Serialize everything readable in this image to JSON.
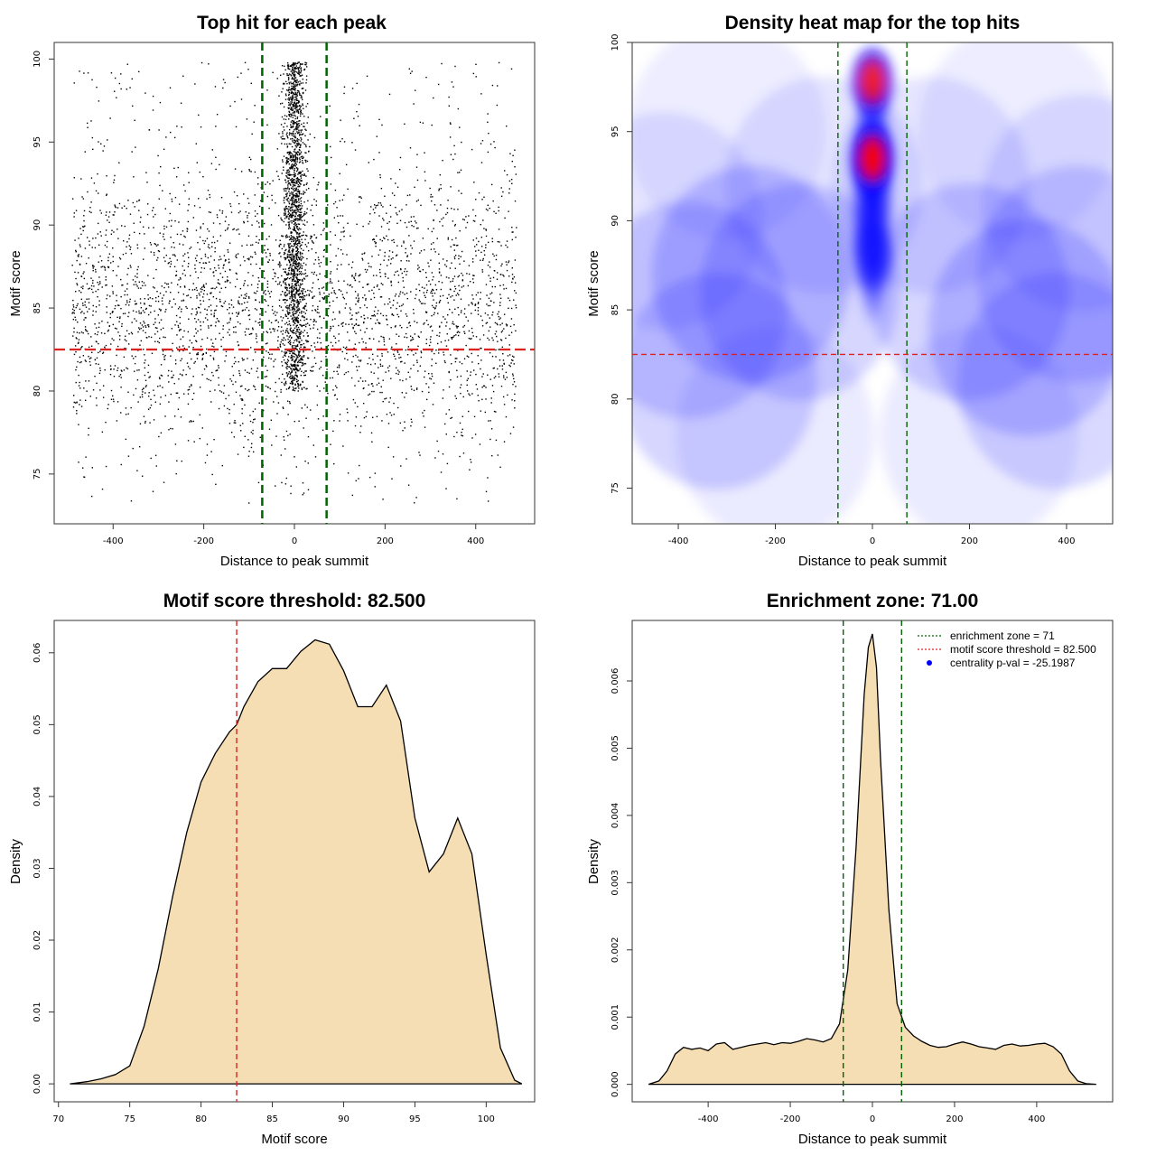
{
  "figure": {
    "layout": "2x2 panel figure"
  },
  "colors": {
    "enrichment_line": "#006400",
    "threshold_line": "#dd2222",
    "density_fill": "#f5deb3",
    "heat_low": "#ffffff",
    "heat_mid": "#0000ff",
    "heat_high": "#ff0000",
    "legend_point": "#0000ff"
  },
  "chart_data": [
    {
      "id": "scatter",
      "type": "scatter",
      "title": "Top hit for each peak",
      "xlabel": "Distance to peak summit",
      "ylabel": "Motif score",
      "xlim": [
        -530,
        530
      ],
      "ylim": [
        72,
        101
      ],
      "xticks": [
        -400,
        -200,
        0,
        200,
        400
      ],
      "yticks": [
        75,
        80,
        85,
        90,
        95,
        100
      ],
      "vlines": [
        -71,
        71
      ],
      "hline": 82.5,
      "point_model": {
        "n_background": 3400,
        "background_x_range": [
          -490,
          490
        ],
        "background_score_peak": 84.5,
        "n_central": 1800,
        "central_x_sd": 12,
        "central_score_range": [
          80,
          100
        ]
      }
    },
    {
      "id": "heatmap",
      "type": "heatmap",
      "title": "Density heat map for the top hits",
      "xlabel": "Distance to peak summit",
      "ylabel": "Motif score",
      "xlim": [
        -495,
        495
      ],
      "ylim": [
        73,
        100
      ],
      "xticks": [
        -400,
        -200,
        0,
        200,
        400
      ],
      "yticks": [
        75,
        80,
        85,
        90,
        95,
        100
      ],
      "vlines": [
        -71,
        71
      ],
      "hline": 82.5,
      "hotspots": [
        {
          "x": 0,
          "y": 93.5,
          "weight": 1.0
        },
        {
          "x": 0,
          "y": 97.8,
          "weight": 0.85
        },
        {
          "x": 0,
          "y": 88,
          "weight": 0.55
        }
      ]
    },
    {
      "id": "score_density",
      "type": "area",
      "title": "Motif score threshold: 82.500",
      "xlabel": "Motif score",
      "ylabel": "Density",
      "xlim": [
        69.7,
        103.4
      ],
      "ylim": [
        -0.0025,
        0.0645
      ],
      "xticks": [
        70,
        75,
        80,
        85,
        90,
        95,
        100
      ],
      "yticks": [
        0.0,
        0.01,
        0.02,
        0.03,
        0.04,
        0.05,
        0.06
      ],
      "ytick_labels": [
        "0.00",
        "0.01",
        "0.02",
        "0.03",
        "0.04",
        "0.05",
        "0.06"
      ],
      "vline": 82.5,
      "x": [
        70.8,
        72,
        73,
        74,
        75,
        76,
        77,
        78,
        79,
        80,
        81,
        82,
        82.5,
        83,
        84,
        85,
        86,
        87,
        88,
        89,
        90,
        91,
        92,
        93,
        94,
        95,
        96,
        97,
        98,
        99,
        100,
        101,
        102,
        102.5
      ],
      "y": [
        0.0,
        0.0003,
        0.0007,
        0.0013,
        0.0025,
        0.008,
        0.016,
        0.026,
        0.035,
        0.042,
        0.046,
        0.049,
        0.05,
        0.0525,
        0.056,
        0.0578,
        0.0578,
        0.0602,
        0.0618,
        0.0612,
        0.0575,
        0.0525,
        0.0525,
        0.0555,
        0.0505,
        0.037,
        0.0295,
        0.032,
        0.037,
        0.032,
        0.018,
        0.005,
        0.0005,
        0.0
      ]
    },
    {
      "id": "distance_density",
      "type": "area",
      "title": "Enrichment zone: 71.00",
      "xlabel": "Distance to peak summit",
      "ylabel": "Density",
      "xlim": [
        -585,
        585
      ],
      "ylim": [
        -0.00026,
        0.0069
      ],
      "xticks": [
        -400,
        -200,
        0,
        200,
        400
      ],
      "yticks": [
        0.0,
        0.001,
        0.002,
        0.003,
        0.004,
        0.005,
        0.006
      ],
      "ytick_labels": [
        "0.000",
        "0.001",
        "0.002",
        "0.003",
        "0.004",
        "0.005",
        "0.006"
      ],
      "vlines": [
        -71,
        71
      ],
      "x": [
        -545,
        -520,
        -500,
        -480,
        -460,
        -440,
        -420,
        -400,
        -380,
        -360,
        -340,
        -320,
        -300,
        -280,
        -260,
        -240,
        -220,
        -200,
        -180,
        -160,
        -140,
        -120,
        -100,
        -80,
        -60,
        -40,
        -20,
        -10,
        0,
        10,
        20,
        40,
        60,
        80,
        100,
        120,
        140,
        160,
        180,
        200,
        220,
        240,
        260,
        280,
        300,
        320,
        340,
        360,
        380,
        400,
        420,
        440,
        460,
        480,
        500,
        520,
        545
      ],
      "y": [
        0.0,
        5e-05,
        0.0002,
        0.00045,
        0.00055,
        0.00052,
        0.00054,
        0.0005,
        0.0006,
        0.00062,
        0.00052,
        0.00055,
        0.00058,
        0.0006,
        0.00062,
        0.00059,
        0.00062,
        0.00061,
        0.00064,
        0.00068,
        0.00066,
        0.00063,
        0.00068,
        0.0009,
        0.0017,
        0.0035,
        0.0058,
        0.0065,
        0.0067,
        0.0062,
        0.0048,
        0.0026,
        0.0012,
        0.00085,
        0.00072,
        0.00064,
        0.00058,
        0.00055,
        0.00056,
        0.0006,
        0.00063,
        0.0006,
        0.00056,
        0.00054,
        0.00052,
        0.00058,
        0.0006,
        0.00057,
        0.00058,
        0.0006,
        0.00061,
        0.00056,
        0.00045,
        0.0002,
        5e-05,
        1e-05,
        0.0
      ],
      "legend": {
        "position": "top-right",
        "items": [
          {
            "label": "enrichment zone = 71",
            "style": "dotted",
            "color": "#006400"
          },
          {
            "label": "motif score threshold = 82.500",
            "style": "dotted",
            "color": "#dd2222"
          },
          {
            "label": "centrality p-val = -25.1987",
            "style": "point",
            "color": "#0000ff"
          }
        ]
      }
    }
  ]
}
